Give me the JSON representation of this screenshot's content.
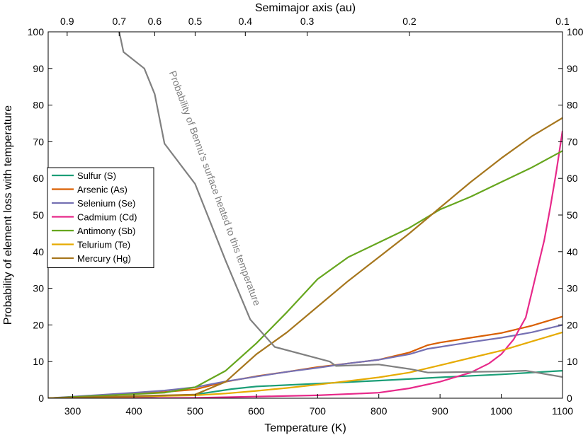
{
  "chart_data": {
    "type": "line",
    "xlabel": "Temperature (K)",
    "ylabel": "Probability of element loss with temperature",
    "top_axis_label": "Semimajor axis (au)",
    "xlim": [
      260,
      1100
    ],
    "ylim": [
      0,
      100
    ],
    "x_ticks": [
      300,
      400,
      500,
      600,
      700,
      800,
      900,
      1000,
      1100
    ],
    "y_ticks": [
      0,
      10,
      20,
      30,
      40,
      50,
      60,
      70,
      80,
      90,
      100
    ],
    "top_ticks": [
      {
        "label": "0.9",
        "temperature": 291
      },
      {
        "label": "0.7",
        "temperature": 376
      },
      {
        "label": "0.6",
        "temperature": 434
      },
      {
        "label": "0.5",
        "temperature": 500
      },
      {
        "label": "0.4",
        "temperature": 582
      },
      {
        "label": "0.3",
        "temperature": 683
      },
      {
        "label": "0.2",
        "temperature": 850
      },
      {
        "label": "0.1",
        "temperature": 1100
      }
    ],
    "series": [
      {
        "name": "Sulfur (S)",
        "color": "#1b9e77",
        "x": [
          260,
          400,
          500,
          560,
          600,
          700,
          800,
          900,
          1000,
          1100
        ],
        "y": [
          0,
          0.3,
          1,
          2.5,
          3.2,
          4,
          4.8,
          5.7,
          6.5,
          7.5
        ]
      },
      {
        "name": "Arsenic (As)",
        "color": "#d95f02",
        "x": [
          260,
          400,
          450,
          500,
          550,
          600,
          650,
          700,
          750,
          800,
          850,
          880,
          900,
          950,
          1000,
          1050,
          1100
        ],
        "y": [
          0,
          1.2,
          1.7,
          2.4,
          4.5,
          6,
          7.2,
          8.5,
          9.5,
          10.5,
          12.5,
          14.5,
          15.2,
          16.5,
          17.8,
          19.8,
          22.3
        ]
      },
      {
        "name": "Selenium (Se)",
        "color": "#7570b3",
        "x": [
          260,
          400,
          450,
          500,
          550,
          600,
          650,
          700,
          750,
          800,
          850,
          880,
          900,
          950,
          1000,
          1050,
          1100
        ],
        "y": [
          0,
          1.5,
          2.1,
          3,
          4.6,
          5.9,
          7.2,
          8.3,
          9.5,
          10.5,
          12,
          13.5,
          14,
          15.3,
          16.5,
          18,
          20
        ]
      },
      {
        "name": "Cadmium (Cd)",
        "color": "#e7298a",
        "x": [
          260,
          500,
          700,
          800,
          850,
          900,
          950,
          980,
          1000,
          1020,
          1040,
          1050,
          1060,
          1070,
          1080,
          1090,
          1100
        ],
        "y": [
          0,
          0.1,
          0.8,
          1.5,
          2.7,
          4.5,
          7,
          9.5,
          12,
          16,
          22,
          29,
          36,
          43,
          52,
          62,
          73
        ]
      },
      {
        "name": "Antimony (Sb)",
        "color": "#66a61e",
        "x": [
          260,
          450,
          500,
          550,
          600,
          650,
          700,
          750,
          800,
          850,
          900,
          950,
          1000,
          1050,
          1100
        ],
        "y": [
          0,
          1.5,
          3,
          7.5,
          15,
          23.5,
          32.5,
          38.5,
          42.5,
          46.5,
          51.5,
          55,
          59,
          63,
          67.5
        ]
      },
      {
        "name": "Telurium (Te)",
        "color": "#e6ab02",
        "x": [
          260,
          500,
          550,
          600,
          650,
          700,
          750,
          800,
          850,
          900,
          950,
          1000,
          1050,
          1100
        ],
        "y": [
          0,
          0.8,
          1.3,
          2,
          2.8,
          3.7,
          4.7,
          5.7,
          7,
          9,
          11,
          13,
          15.5,
          18
        ]
      },
      {
        "name": "Mercury (Hg)",
        "color": "#a6761d",
        "x": [
          260,
          500,
          550,
          600,
          650,
          700,
          750,
          800,
          850,
          900,
          950,
          1000,
          1050,
          1100
        ],
        "y": [
          0,
          1,
          4.5,
          12,
          18,
          25,
          32,
          38.5,
          45,
          52,
          59,
          65.5,
          71.5,
          76.5
        ]
      },
      {
        "name": "Probability of Bennu's surface heated to this temperature",
        "color": "#808080",
        "in_legend": false,
        "x": [
          376,
          383,
          417,
          434,
          450,
          500,
          550,
          590,
          630,
          720,
          730,
          800,
          850,
          880,
          1000,
          1040,
          1100
        ],
        "y": [
          100,
          94.5,
          90,
          83,
          69.5,
          58.5,
          37.5,
          21.5,
          14,
          10,
          8.8,
          9.2,
          8,
          7,
          7.3,
          7.5,
          5.8
        ]
      }
    ],
    "annotation": {
      "text": "Probability of Bennu's surface heated to this temperature",
      "x": 527,
      "y": 57,
      "rotation_deg": 70
    },
    "legend_position": "middle-left",
    "grid": false
  }
}
